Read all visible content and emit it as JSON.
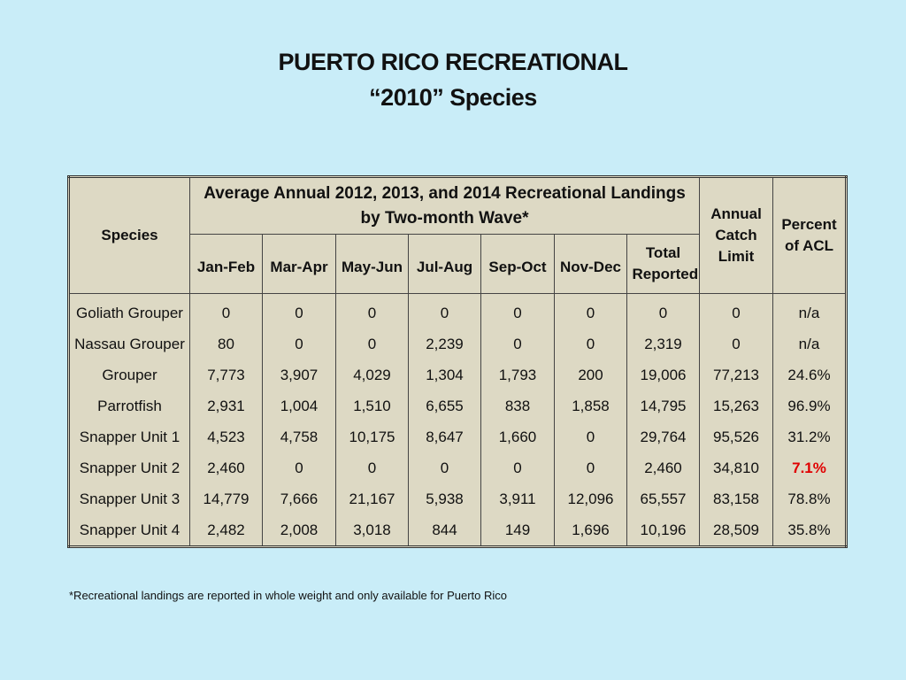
{
  "title": {
    "line1": "PUERTO RICO RECREATIONAL",
    "line2": "“2010” Species"
  },
  "table": {
    "species_header": "Species",
    "group_header": "Average Annual 2012, 2013, and 2014 Recreational Landings by Two-month Wave*",
    "waves": [
      "Jan-Feb",
      "Mar-Apr",
      "May-Jun",
      "Jul-Aug",
      "Sep-Oct",
      "Nov-Dec"
    ],
    "total_header": "Total Reported",
    "acl_header": "Annual Catch Limit",
    "pct_header": "Percent of ACL",
    "rows": [
      [
        "Goliath Grouper",
        "0",
        "0",
        "0",
        "0",
        "0",
        "0",
        "0",
        "0",
        "n/a"
      ],
      [
        "Nassau Grouper",
        "80",
        "0",
        "0",
        "2,239",
        "0",
        "0",
        "2,319",
        "0",
        "n/a"
      ],
      [
        "Grouper",
        "7,773",
        "3,907",
        "4,029",
        "1,304",
        "1,793",
        "200",
        "19,006",
        "77,213",
        "24.6%"
      ],
      [
        "Parrotfish",
        "2,931",
        "1,004",
        "1,510",
        "6,655",
        "838",
        "1,858",
        "14,795",
        "15,263",
        "96.9%"
      ],
      [
        "Snapper Unit 1",
        "4,523",
        "4,758",
        "10,175",
        "8,647",
        "1,660",
        "0",
        "29,764",
        "95,526",
        "31.2%"
      ],
      [
        "Snapper Unit 2",
        "2,460",
        "0",
        "0",
        "0",
        "0",
        "0",
        "2,460",
        "34,810",
        "7.1%"
      ],
      [
        "Snapper Unit 3",
        "14,779",
        "7,666",
        "21,167",
        "5,938",
        "3,911",
        "12,096",
        "65,557",
        "83,158",
        "78.8%"
      ],
      [
        "Snapper Unit 4",
        "2,482",
        "2,008",
        "3,018",
        "844",
        "149",
        "1,696",
        "10,196",
        "28,509",
        "35.8%"
      ]
    ],
    "highlight_color": "#e00000"
  },
  "footnote": "*Recreational landings are reported in whole weight and only available for Puerto Rico"
}
